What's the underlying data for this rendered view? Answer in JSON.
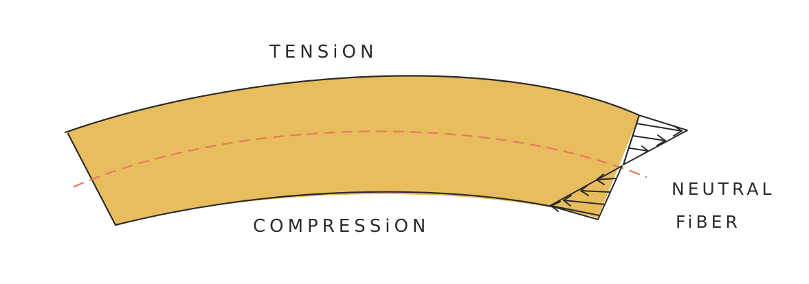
{
  "diagram": {
    "labels": {
      "top": "TENSiON",
      "bottom": "COMPRESSiON",
      "side_line1": "NEUTRAL",
      "side_line2": "FiBER"
    },
    "colors": {
      "beam_fill": "#E8BD5E",
      "beam_outline": "#2a2a2a",
      "neutral_axis": "#E57D5F",
      "stroke": "#2a2a2a"
    }
  }
}
